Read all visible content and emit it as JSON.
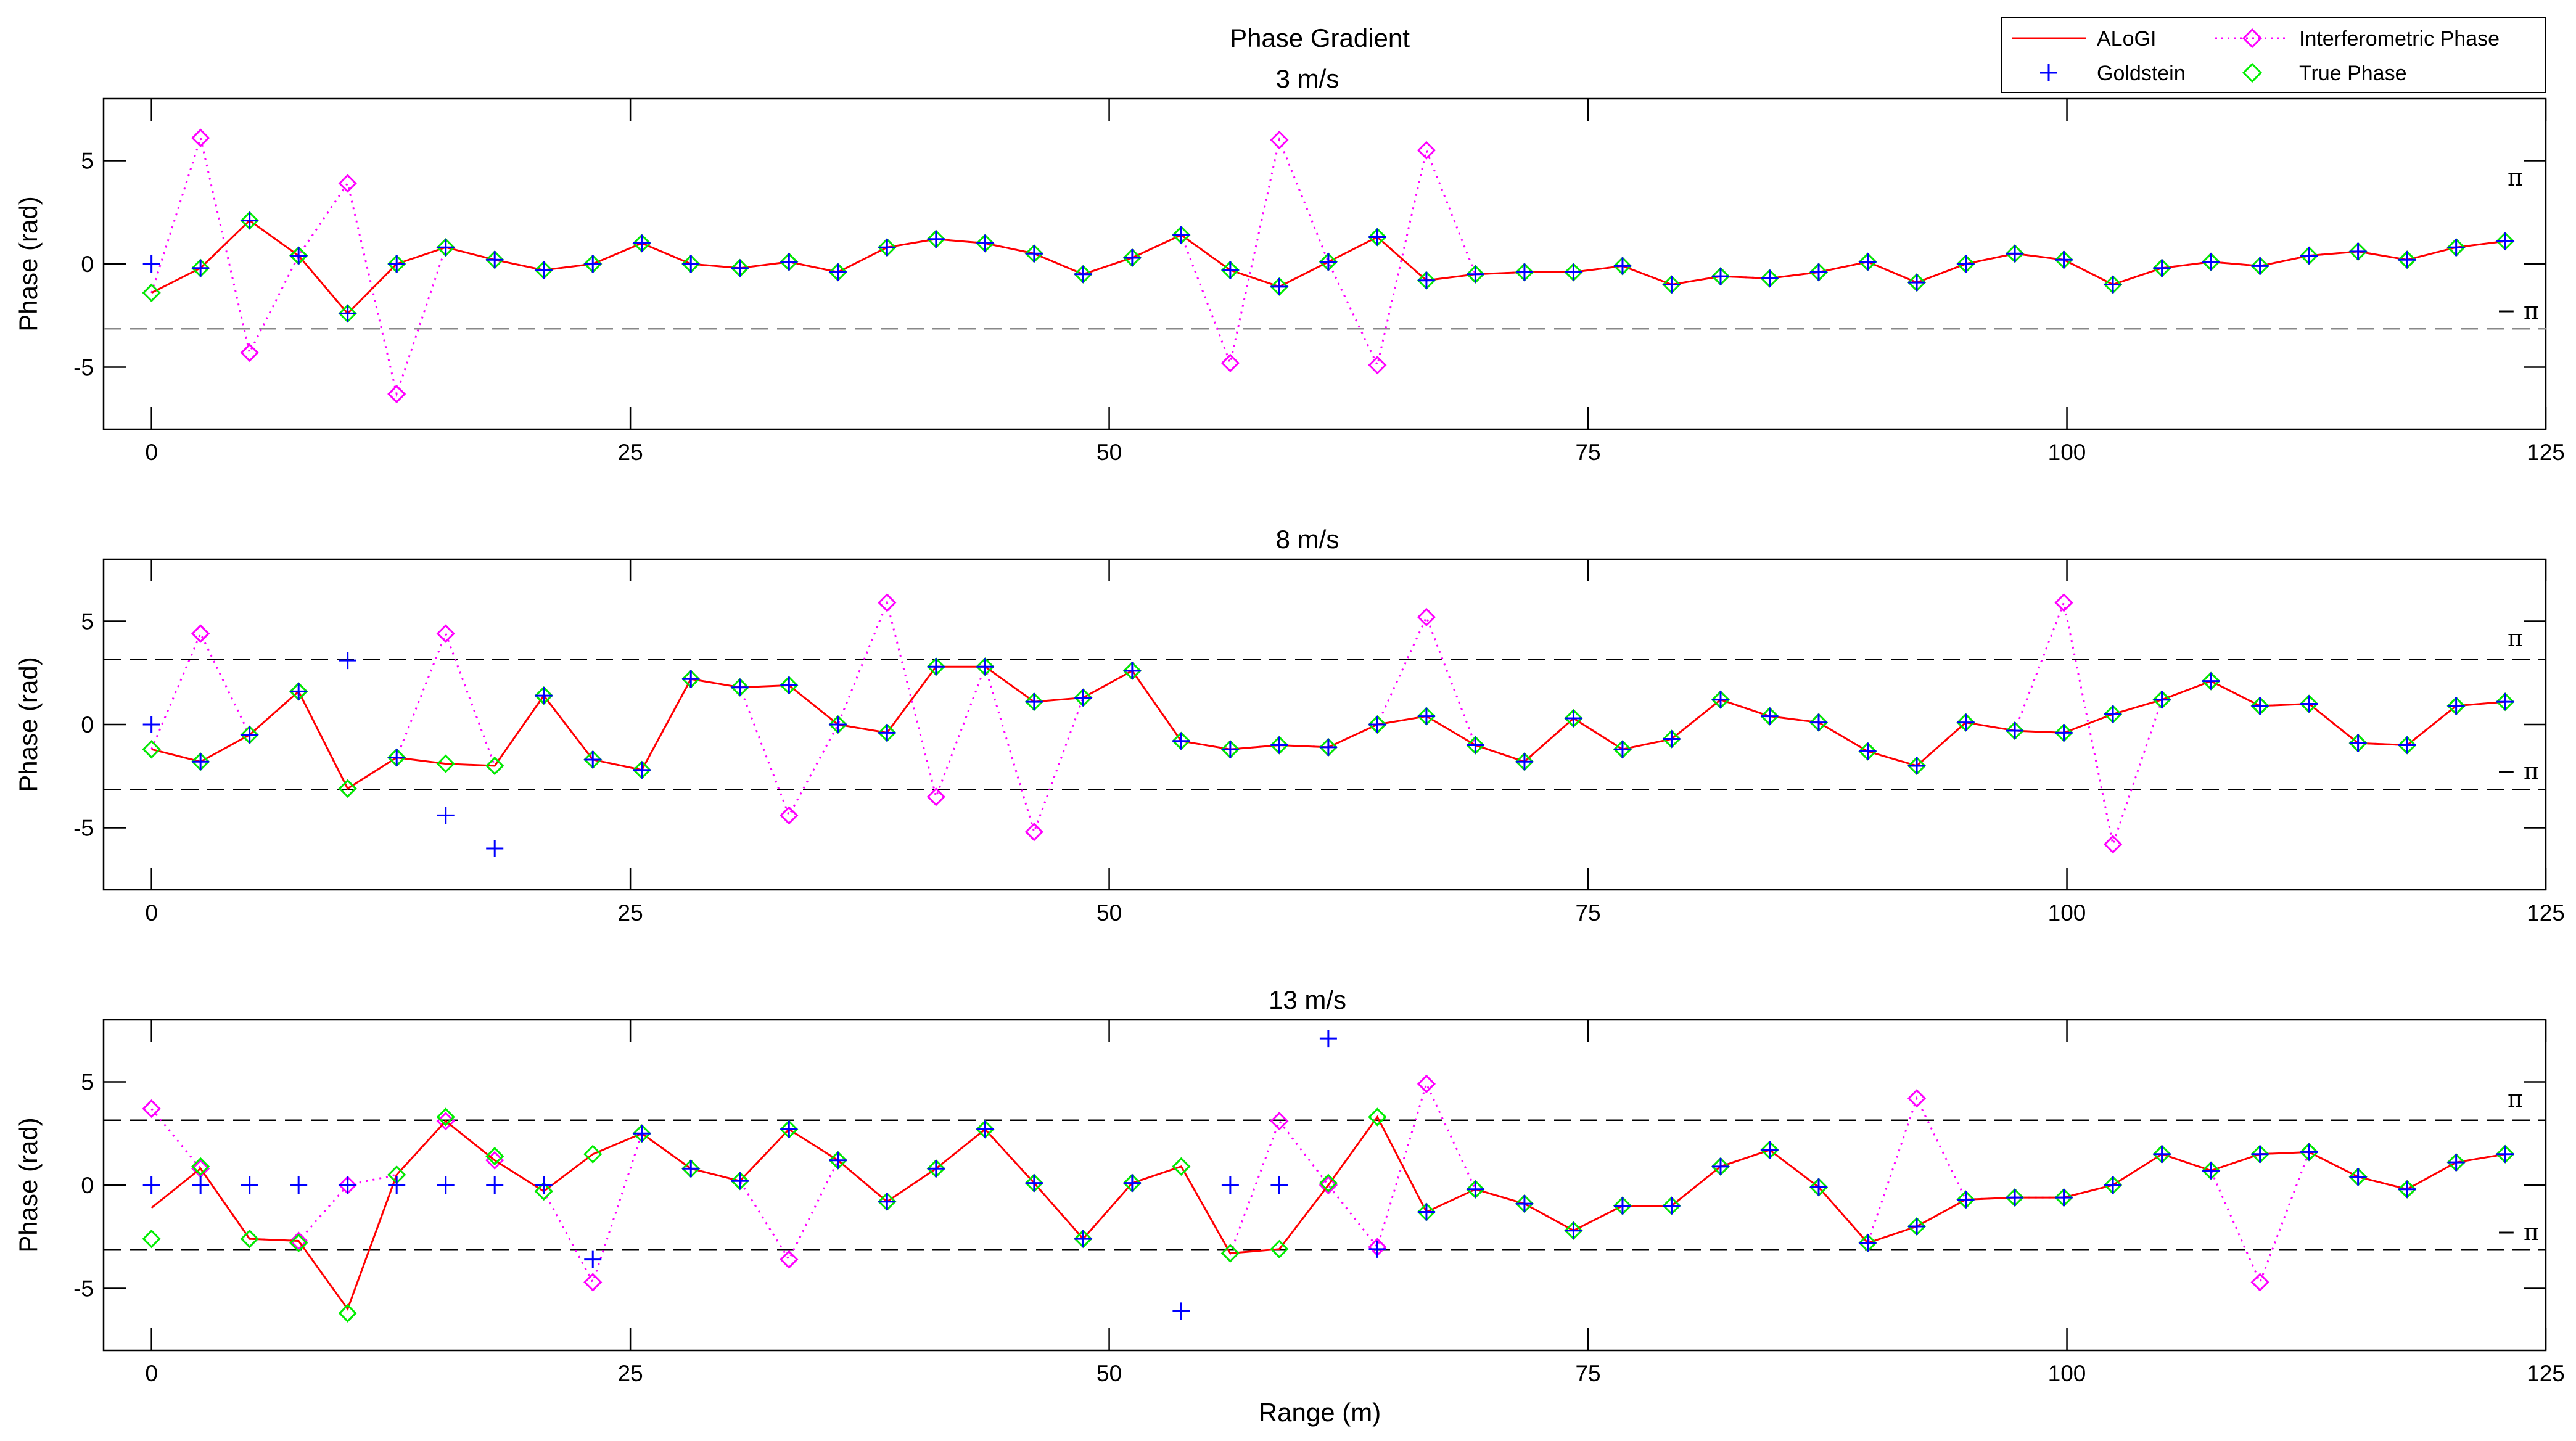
{
  "figure_title": "Phase Gradient",
  "x_label": "Range (m)",
  "y_label": "Phase (rad)",
  "pi_label": "π",
  "neg_pi_label": "− π",
  "colors": {
    "alogi": "#ff0000",
    "goldstein": "#0000ff",
    "interferometric": "#ff00ff",
    "true_phase": "#00ee00",
    "pi_lines": "#000000",
    "pi_lines_first_panel": "#888888"
  },
  "legend": {
    "items": [
      {
        "key": "alogi",
        "label": "ALoGI"
      },
      {
        "key": "interferometric",
        "label": "Interferometric Phase"
      },
      {
        "key": "goldstein",
        "label": "Goldstein"
      },
      {
        "key": "true_phase",
        "label": "True Phase"
      }
    ]
  },
  "chart_data": [
    {
      "type": "line",
      "title": "3 m/s",
      "xlabel": "",
      "ylabel": "Phase (rad)",
      "xlim": [
        -2.5,
        125
      ],
      "ylim": [
        -8,
        8
      ],
      "xticks": [
        0,
        25,
        50,
        75,
        100,
        125
      ],
      "yticks": [
        -5,
        0,
        5
      ],
      "show_pi_lines": "minus-only",
      "x": [
        0,
        2.56,
        5.12,
        7.68,
        10.24,
        12.8,
        15.36,
        17.92,
        20.48,
        23.04,
        25.6,
        28.16,
        30.72,
        33.28,
        35.84,
        38.4,
        40.96,
        43.52,
        46.08,
        48.64,
        51.2,
        53.76,
        56.32,
        58.88,
        61.44,
        64,
        66.56,
        69.12,
        71.68,
        74.24,
        76.8,
        79.36,
        81.92,
        84.48,
        87.04,
        89.6,
        92.16,
        94.72,
        97.28,
        99.84,
        102.4,
        104.96,
        107.52,
        110.08,
        112.64,
        115.2,
        117.76,
        120.32,
        122.88
      ],
      "series": [
        {
          "name": "ALoGI",
          "style": "line",
          "values": [
            -1.4,
            -0.2,
            2.1,
            0.4,
            -2.4,
            0.0,
            0.8,
            0.2,
            -0.3,
            0.0,
            1.0,
            0.0,
            -0.2,
            0.1,
            -0.4,
            0.8,
            1.2,
            1.0,
            0.5,
            -0.5,
            0.3,
            1.4,
            -0.3,
            -1.1,
            0.1,
            1.3,
            -0.8,
            -0.5,
            -0.4,
            -0.4,
            -0.1,
            -1.0,
            -0.6,
            -0.7,
            -0.4,
            0.1,
            -0.9,
            0.0,
            0.5,
            0.2,
            -1.0,
            -0.2,
            0.1,
            -0.1,
            0.4,
            0.6,
            0.2,
            0.8,
            1.1
          ]
        },
        {
          "name": "Goldstein",
          "style": "plus",
          "values": [
            0.0,
            -0.2,
            2.1,
            0.4,
            -2.4,
            0.0,
            0.8,
            0.2,
            -0.3,
            0.0,
            1.0,
            0.0,
            -0.2,
            0.1,
            -0.4,
            0.8,
            1.2,
            1.0,
            0.5,
            -0.5,
            0.3,
            1.4,
            -0.3,
            -1.1,
            0.1,
            1.3,
            -0.8,
            -0.5,
            -0.4,
            -0.4,
            -0.1,
            -1.0,
            -0.6,
            -0.7,
            -0.4,
            0.1,
            -0.9,
            0.0,
            0.5,
            0.2,
            -1.0,
            -0.2,
            0.1,
            -0.1,
            0.4,
            0.6,
            0.2,
            0.8,
            1.1
          ]
        },
        {
          "name": "Interferometric Phase",
          "style": "dotted-diamond",
          "values": [
            -1.4,
            6.1,
            -4.3,
            0.4,
            3.9,
            -6.3,
            0.8,
            0.2,
            -0.3,
            0.0,
            1.0,
            0.0,
            -0.2,
            0.1,
            -0.4,
            0.8,
            1.2,
            1.0,
            0.5,
            -0.5,
            0.3,
            1.4,
            -4.8,
            6.0,
            0.1,
            -4.9,
            5.5,
            -0.5,
            -0.4,
            -0.4,
            -0.1,
            -1.0,
            -0.6,
            -0.7,
            -0.4,
            0.1,
            -0.9,
            0.0,
            0.5,
            0.2,
            -1.0,
            -0.2,
            0.1,
            -0.1,
            0.4,
            0.6,
            0.2,
            0.8,
            1.1
          ]
        },
        {
          "name": "True Phase",
          "style": "diamond",
          "values": [
            -1.4,
            -0.2,
            2.1,
            0.4,
            -2.4,
            0.0,
            0.8,
            0.2,
            -0.3,
            0.0,
            1.0,
            0.0,
            -0.2,
            0.1,
            -0.4,
            0.8,
            1.2,
            1.0,
            0.5,
            -0.5,
            0.3,
            1.4,
            -0.3,
            -1.1,
            0.1,
            1.3,
            -0.8,
            -0.5,
            -0.4,
            -0.4,
            -0.1,
            -1.0,
            -0.6,
            -0.7,
            -0.4,
            0.1,
            -0.9,
            0.0,
            0.5,
            0.2,
            -1.0,
            -0.2,
            0.1,
            -0.1,
            0.4,
            0.6,
            0.2,
            0.8,
            1.1
          ]
        }
      ]
    },
    {
      "type": "line",
      "title": "8 m/s",
      "xlabel": "",
      "ylabel": "Phase (rad)",
      "xlim": [
        -2.5,
        125
      ],
      "ylim": [
        -8,
        8
      ],
      "xticks": [
        0,
        25,
        50,
        75,
        100,
        125
      ],
      "yticks": [
        -5,
        0,
        5
      ],
      "show_pi_lines": "both",
      "x": [
        0,
        2.56,
        5.12,
        7.68,
        10.24,
        12.8,
        15.36,
        17.92,
        20.48,
        23.04,
        25.6,
        28.16,
        30.72,
        33.28,
        35.84,
        38.4,
        40.96,
        43.52,
        46.08,
        48.64,
        51.2,
        53.76,
        56.32,
        58.88,
        61.44,
        64,
        66.56,
        69.12,
        71.68,
        74.24,
        76.8,
        79.36,
        81.92,
        84.48,
        87.04,
        89.6,
        92.16,
        94.72,
        97.28,
        99.84,
        102.4,
        104.96,
        107.52,
        110.08,
        112.64,
        115.2,
        117.76,
        120.32,
        122.88
      ],
      "series": [
        {
          "name": "ALoGI",
          "style": "line",
          "values": [
            -1.2,
            -1.8,
            -0.5,
            1.6,
            -3.1,
            -1.6,
            -1.9,
            -2.0,
            1.4,
            -1.7,
            -2.2,
            2.2,
            1.8,
            1.9,
            0.0,
            -0.4,
            2.8,
            2.8,
            1.1,
            1.3,
            2.6,
            -0.8,
            -1.2,
            -1.0,
            -1.1,
            0.0,
            0.4,
            -1.0,
            -1.8,
            0.3,
            -1.2,
            -0.7,
            1.2,
            0.4,
            0.1,
            -1.3,
            -2.0,
            0.1,
            -0.3,
            -0.4,
            0.5,
            1.2,
            2.1,
            0.9,
            1.0,
            -0.9,
            -1.0,
            0.9,
            1.1
          ]
        },
        {
          "name": "Goldstein",
          "style": "plus",
          "values": [
            0.0,
            -1.8,
            -0.5,
            1.6,
            3.1,
            -1.6,
            -4.4,
            -6.0,
            1.4,
            -1.7,
            -2.2,
            2.2,
            1.8,
            1.9,
            0.0,
            -0.4,
            2.8,
            2.8,
            1.1,
            1.3,
            2.6,
            -0.8,
            -1.2,
            -1.0,
            -1.1,
            0.0,
            0.4,
            -1.0,
            -1.8,
            0.3,
            -1.2,
            -0.7,
            1.2,
            0.4,
            0.1,
            -1.3,
            -2.0,
            0.1,
            -0.3,
            -0.4,
            0.5,
            1.2,
            2.1,
            0.9,
            1.0,
            -0.9,
            -1.0,
            0.9,
            1.1
          ]
        },
        {
          "name": "Interferometric Phase",
          "style": "dotted-diamond",
          "values": [
            -1.2,
            4.4,
            -0.5,
            1.6,
            -3.1,
            -1.6,
            4.4,
            -2.0,
            1.4,
            -1.7,
            -2.2,
            2.2,
            1.8,
            -4.4,
            0.0,
            5.9,
            -3.5,
            2.8,
            -5.2,
            1.3,
            2.6,
            -0.8,
            -1.2,
            -1.0,
            -1.1,
            0.0,
            5.2,
            -1.0,
            -1.8,
            0.3,
            -1.2,
            -0.7,
            1.2,
            0.4,
            0.1,
            -1.3,
            -2.0,
            0.1,
            -0.3,
            5.9,
            -5.8,
            1.2,
            2.1,
            0.9,
            1.0,
            -0.9,
            -1.0,
            0.9,
            1.1
          ]
        },
        {
          "name": "True Phase",
          "style": "diamond",
          "values": [
            -1.2,
            -1.8,
            -0.5,
            1.6,
            -3.1,
            -1.6,
            -1.9,
            -2.0,
            1.4,
            -1.7,
            -2.2,
            2.2,
            1.8,
            1.9,
            0.0,
            -0.4,
            2.8,
            2.8,
            1.1,
            1.3,
            2.6,
            -0.8,
            -1.2,
            -1.0,
            -1.1,
            0.0,
            0.4,
            -1.0,
            -1.8,
            0.3,
            -1.2,
            -0.7,
            1.2,
            0.4,
            0.1,
            -1.3,
            -2.0,
            0.1,
            -0.3,
            -0.4,
            0.5,
            1.2,
            2.1,
            0.9,
            1.0,
            -0.9,
            -1.0,
            0.9,
            1.1
          ]
        }
      ]
    },
    {
      "type": "line",
      "title": "13 m/s",
      "xlabel": "Range (m)",
      "ylabel": "Phase (rad)",
      "xlim": [
        -2.5,
        125
      ],
      "ylim": [
        -8,
        8
      ],
      "xticks": [
        0,
        25,
        50,
        75,
        100,
        125
      ],
      "yticks": [
        -5,
        0,
        5
      ],
      "show_pi_lines": "both",
      "x": [
        0,
        2.56,
        5.12,
        7.68,
        10.24,
        12.8,
        15.36,
        17.92,
        20.48,
        23.04,
        25.6,
        28.16,
        30.72,
        33.28,
        35.84,
        38.4,
        40.96,
        43.52,
        46.08,
        48.64,
        51.2,
        53.76,
        56.32,
        58.88,
        61.44,
        64,
        66.56,
        69.12,
        71.68,
        74.24,
        76.8,
        79.36,
        81.92,
        84.48,
        87.04,
        89.6,
        92.16,
        94.72,
        97.28,
        99.84,
        102.4,
        104.96,
        107.52,
        110.08,
        112.64,
        115.2,
        117.76,
        120.32,
        122.88
      ],
      "series": [
        {
          "name": "ALoGI",
          "style": "line",
          "values": [
            -1.1,
            0.8,
            -2.6,
            -2.7,
            -6.0,
            0.5,
            3.1,
            1.2,
            -0.3,
            1.5,
            2.5,
            0.8,
            0.2,
            2.7,
            1.2,
            -0.8,
            0.8,
            2.7,
            0.1,
            -2.6,
            0.1,
            0.9,
            -3.3,
            -3.1,
            0.0,
            3.3,
            -1.3,
            -0.2,
            -0.9,
            -2.2,
            -1.0,
            -1.0,
            0.9,
            1.7,
            -0.1,
            -2.8,
            -2.0,
            -0.7,
            -0.6,
            -0.6,
            0.0,
            1.5,
            0.7,
            1.5,
            1.6,
            0.4,
            -0.2,
            1.1,
            1.5
          ]
        },
        {
          "name": "Goldstein",
          "style": "plus",
          "values": [
            0.0,
            0.0,
            0.0,
            0.0,
            0.0,
            0.0,
            0.0,
            0.0,
            0.0,
            -3.6,
            2.5,
            0.8,
            0.2,
            2.7,
            1.2,
            -0.8,
            0.8,
            2.7,
            0.1,
            -2.6,
            0.1,
            -6.1,
            0.0,
            0.0,
            7.1,
            -3.1,
            -1.3,
            -0.2,
            -0.9,
            -2.2,
            -1.0,
            -1.0,
            0.9,
            1.7,
            -0.1,
            -2.8,
            -2.0,
            -0.7,
            -0.6,
            -0.6,
            0.0,
            1.5,
            0.7,
            1.5,
            1.6,
            0.4,
            -0.2,
            1.1,
            1.5
          ]
        },
        {
          "name": "Interferometric Phase",
          "style": "dotted-diamond",
          "values": [
            3.7,
            0.8,
            -2.6,
            -2.7,
            0.0,
            0.5,
            3.1,
            1.2,
            -0.3,
            -4.7,
            2.5,
            0.8,
            0.2,
            -3.6,
            1.2,
            -0.8,
            0.8,
            2.7,
            0.1,
            -2.6,
            0.1,
            0.9,
            -3.3,
            3.1,
            0.0,
            -3.0,
            4.9,
            -0.2,
            -0.9,
            -2.2,
            -1.0,
            -1.0,
            0.9,
            1.7,
            -0.1,
            -2.8,
            4.2,
            -0.7,
            -0.6,
            -0.6,
            0.0,
            1.5,
            0.7,
            -4.7,
            1.6,
            0.4,
            -0.2,
            1.1,
            1.5
          ]
        },
        {
          "name": "True Phase",
          "style": "diamond",
          "values": [
            -2.6,
            0.9,
            -2.6,
            -2.8,
            -6.2,
            0.5,
            3.3,
            1.4,
            -0.3,
            1.5,
            2.5,
            0.8,
            0.2,
            2.7,
            1.2,
            -0.8,
            0.8,
            2.7,
            0.1,
            -2.6,
            0.1,
            0.9,
            -3.3,
            -3.1,
            0.1,
            3.3,
            -1.3,
            -0.2,
            -0.9,
            -2.2,
            -1.0,
            -1.0,
            0.9,
            1.7,
            -0.1,
            -2.8,
            -2.0,
            -0.7,
            -0.6,
            -0.6,
            0.0,
            1.5,
            0.7,
            1.5,
            1.6,
            0.4,
            -0.2,
            1.1,
            1.5
          ]
        }
      ]
    }
  ]
}
